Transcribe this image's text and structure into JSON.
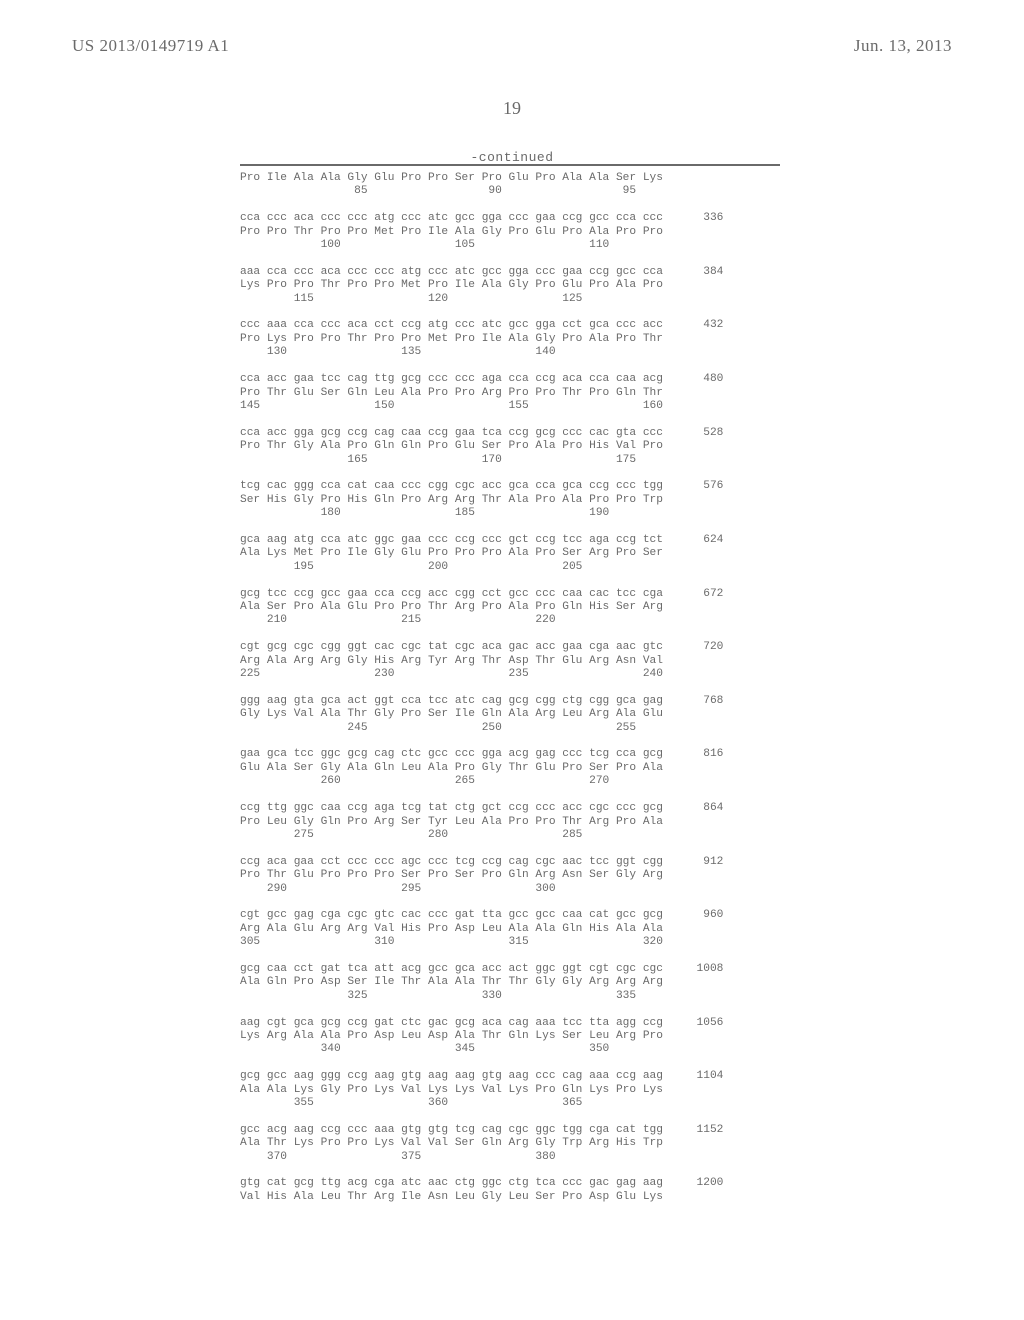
{
  "header": {
    "left": "US 2013/0149719 A1",
    "right": "Jun. 13, 2013"
  },
  "pageNumber": "19",
  "continuedLabel": "-continued",
  "sequence": "Pro Ile Ala Ala Gly Glu Pro Pro Ser Pro Glu Pro Ala Ala Ser Lys\n                 85                  90                  95\n\ncca ccc aca ccc ccc atg ccc atc gcc gga ccc gaa ccg gcc cca ccc      336\nPro Pro Thr Pro Pro Met Pro Ile Ala Gly Pro Glu Pro Ala Pro Pro\n            100                 105                 110\n\naaa cca ccc aca ccc ccc atg ccc atc gcc gga ccc gaa ccg gcc cca      384\nLys Pro Pro Thr Pro Pro Met Pro Ile Ala Gly Pro Glu Pro Ala Pro\n        115                 120                 125\n\nccc aaa cca ccc aca cct ccg atg ccc atc gcc gga cct gca ccc acc      432\nPro Lys Pro Pro Thr Pro Pro Met Pro Ile Ala Gly Pro Ala Pro Thr\n    130                 135                 140\n\ncca acc gaa tcc cag ttg gcg ccc ccc aga cca ccg aca cca caa acg      480\nPro Thr Glu Ser Gln Leu Ala Pro Pro Arg Pro Pro Thr Pro Gln Thr\n145                 150                 155                 160\n\ncca acc gga gcg ccg cag caa ccg gaa tca ccg gcg ccc cac gta ccc      528\nPro Thr Gly Ala Pro Gln Gln Pro Glu Ser Pro Ala Pro His Val Pro\n                165                 170                 175\n\ntcg cac ggg cca cat caa ccc cgg cgc acc gca cca gca ccg ccc tgg      576\nSer His Gly Pro His Gln Pro Arg Arg Thr Ala Pro Ala Pro Pro Trp\n            180                 185                 190\n\ngca aag atg cca atc ggc gaa ccc ccg ccc gct ccg tcc aga ccg tct      624\nAla Lys Met Pro Ile Gly Glu Pro Pro Pro Ala Pro Ser Arg Pro Ser\n        195                 200                 205\n\ngcg tcc ccg gcc gaa cca ccg acc cgg cct gcc ccc caa cac tcc cga      672\nAla Ser Pro Ala Glu Pro Pro Thr Arg Pro Ala Pro Gln His Ser Arg\n    210                 215                 220\n\ncgt gcg cgc cgg ggt cac cgc tat cgc aca gac acc gaa cga aac gtc      720\nArg Ala Arg Arg Gly His Arg Tyr Arg Thr Asp Thr Glu Arg Asn Val\n225                 230                 235                 240\n\nggg aag gta gca act ggt cca tcc atc cag gcg cgg ctg cgg gca gag      768\nGly Lys Val Ala Thr Gly Pro Ser Ile Gln Ala Arg Leu Arg Ala Glu\n                245                 250                 255\n\ngaa gca tcc ggc gcg cag ctc gcc ccc gga acg gag ccc tcg cca gcg      816\nGlu Ala Ser Gly Ala Gln Leu Ala Pro Gly Thr Glu Pro Ser Pro Ala\n            260                 265                 270\n\nccg ttg ggc caa ccg aga tcg tat ctg gct ccg ccc acc cgc ccc gcg      864\nPro Leu Gly Gln Pro Arg Ser Tyr Leu Ala Pro Pro Thr Arg Pro Ala\n        275                 280                 285\n\nccg aca gaa cct ccc ccc agc ccc tcg ccg cag cgc aac tcc ggt cgg      912\nPro Thr Glu Pro Pro Pro Ser Pro Ser Pro Gln Arg Asn Ser Gly Arg\n    290                 295                 300\n\ncgt gcc gag cga cgc gtc cac ccc gat tta gcc gcc caa cat gcc gcg      960\nArg Ala Glu Arg Arg Val His Pro Asp Leu Ala Ala Gln His Ala Ala\n305                 310                 315                 320\n\ngcg caa cct gat tca att acg gcc gca acc act ggc ggt cgt cgc cgc     1008\nAla Gln Pro Asp Ser Ile Thr Ala Ala Thr Thr Gly Gly Arg Arg Arg\n                325                 330                 335\n\naag cgt gca gcg ccg gat ctc gac gcg aca cag aaa tcc tta agg ccg     1056\nLys Arg Ala Ala Pro Asp Leu Asp Ala Thr Gln Lys Ser Leu Arg Pro\n            340                 345                 350\n\ngcg gcc aag ggg ccg aag gtg aag aag gtg aag ccc cag aaa ccg aag     1104\nAla Ala Lys Gly Pro Lys Val Lys Lys Val Lys Pro Gln Lys Pro Lys\n        355                 360                 365\n\ngcc acg aag ccg ccc aaa gtg gtg tcg cag cgc ggc tgg cga cat tgg     1152\nAla Thr Lys Pro Pro Lys Val Val Ser Gln Arg Gly Trp Arg His Trp\n    370                 375                 380\n\ngtg cat gcg ttg acg cga atc aac ctg ggc ctg tca ccc gac gag aag     1200\nVal His Ala Leu Thr Arg Ile Asn Leu Gly Leu Ser Pro Asp Glu Lys"
}
